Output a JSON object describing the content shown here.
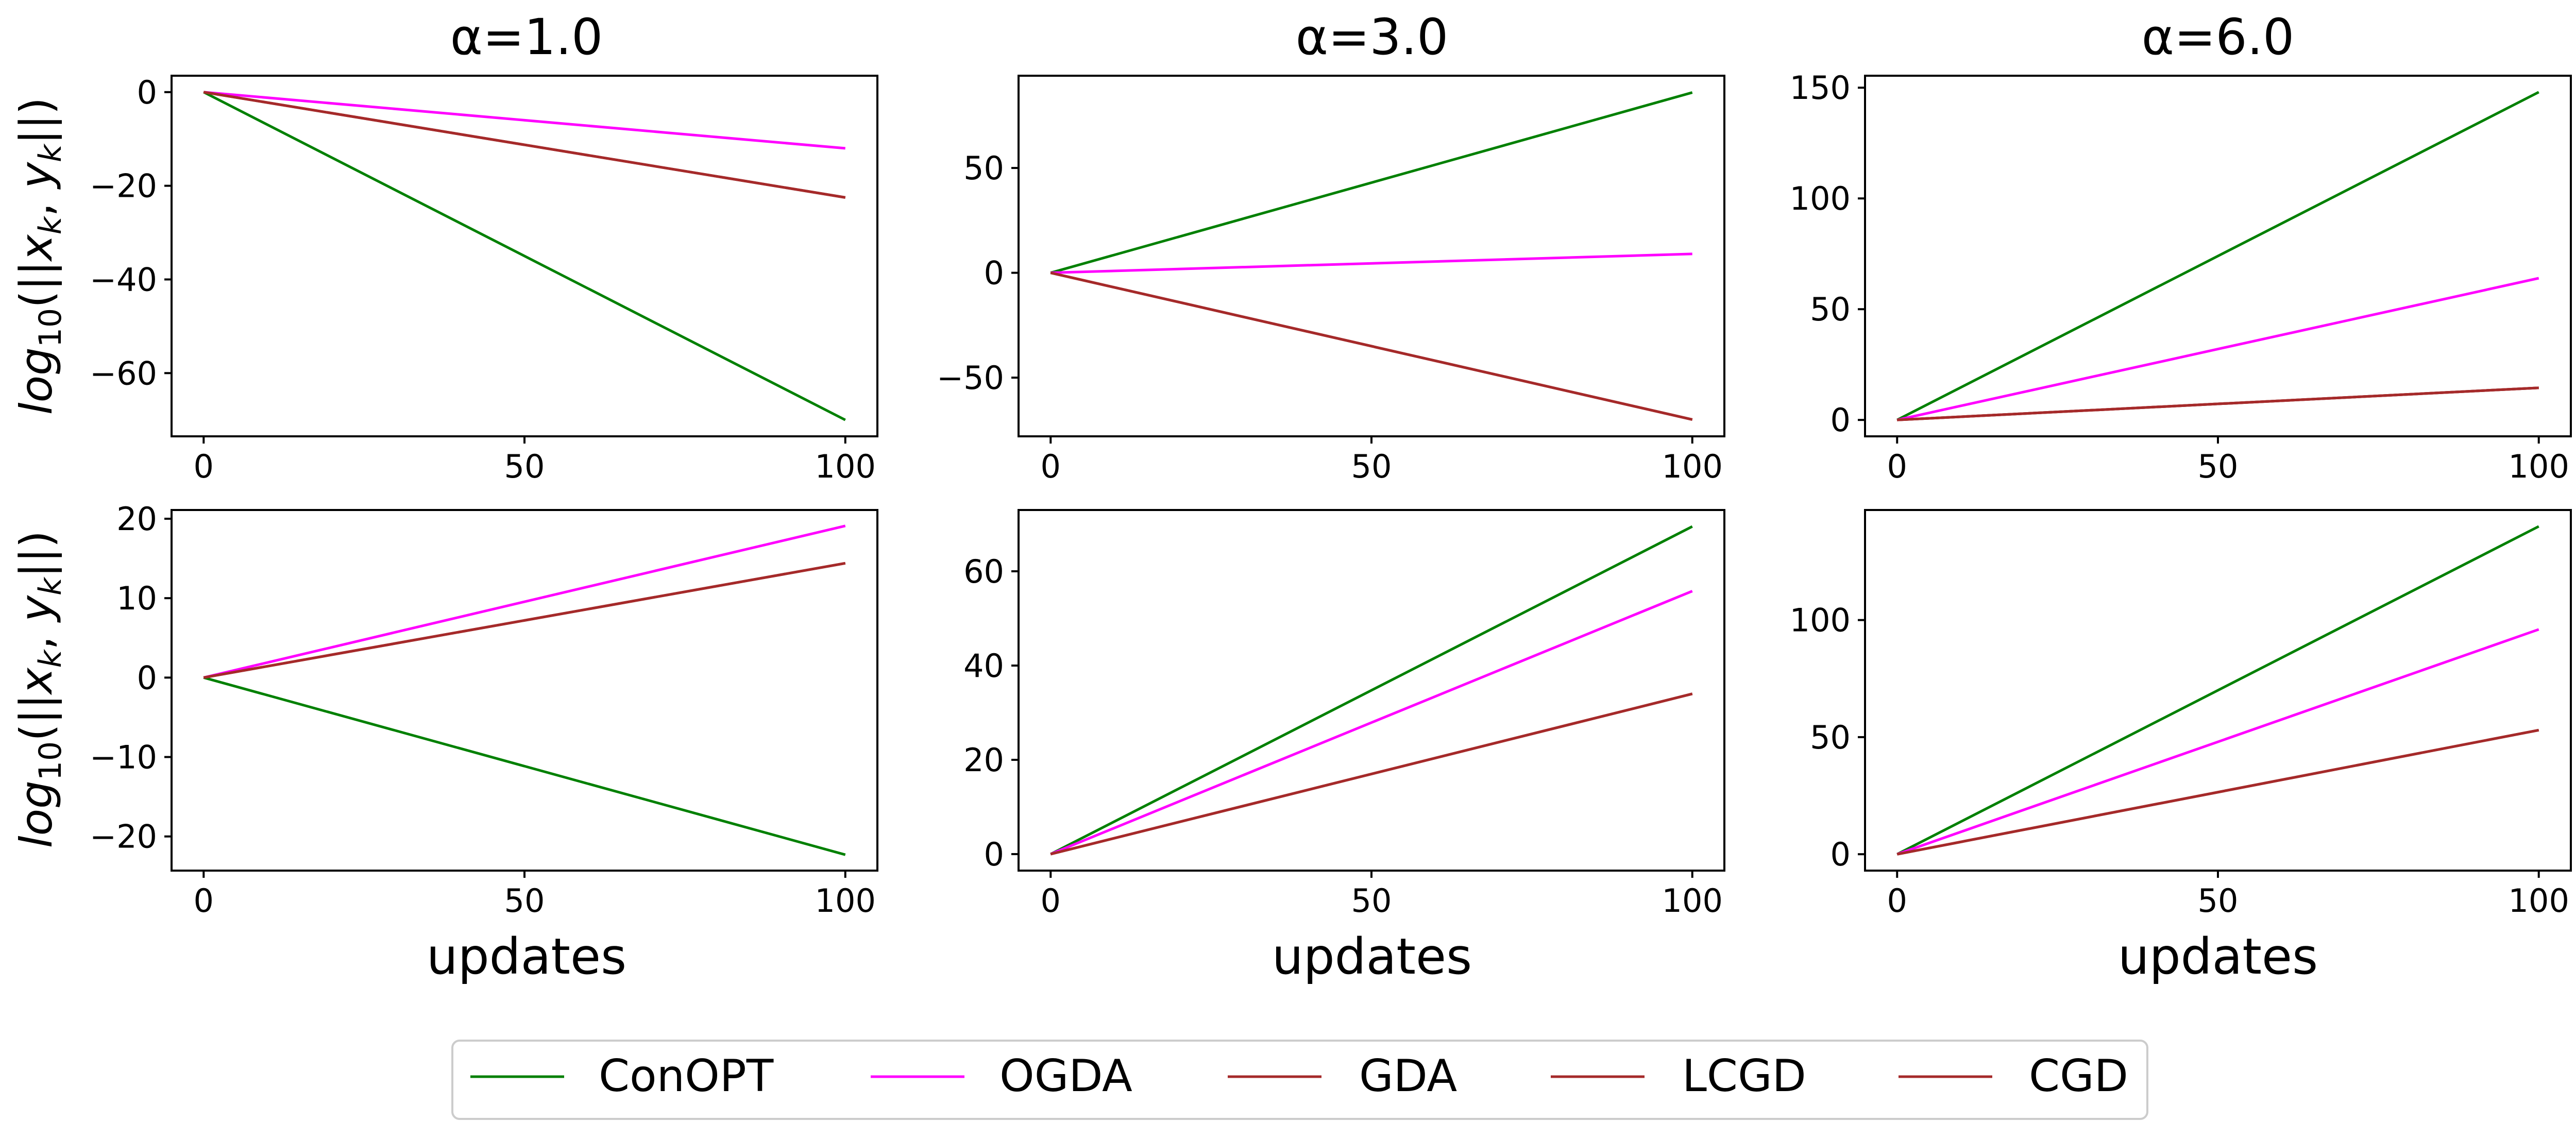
{
  "figure": {
    "column_titles": [
      "α=1.0",
      "α=3.0",
      "α=6.0"
    ],
    "xlabel": "updates",
    "ylabel": "log10(||xk, yk||)",
    "ylabel_parts": {
      "main": "log",
      "sub": "10",
      "paren_open": "(||",
      "x": "x",
      "k1": "k",
      "comma": ", ",
      "y": "y",
      "k2": "k",
      "paren_close": "||)"
    }
  },
  "legend": {
    "placement": "bottom-center",
    "entries": [
      {
        "name": "ConOPT",
        "color": "#008000"
      },
      {
        "name": "OGDA",
        "color": "#ff00ff"
      },
      {
        "name": "GDA",
        "color": "#a52a2a"
      },
      {
        "name": "LCGD",
        "color": "#a52a2a"
      },
      {
        "name": "CGD",
        "color": "#a52a2a"
      }
    ]
  },
  "chart_data": [
    {
      "type": "line",
      "row": 0,
      "col": 0,
      "title": "α=1.0",
      "xlabel": "",
      "ylabel": "log10(||xk, yk||)",
      "x": [
        0,
        100
      ],
      "xlim": [
        -5,
        105
      ],
      "ylim": [
        -73.5,
        3.5
      ],
      "xticks": [
        0,
        50,
        100
      ],
      "yticks": [
        0,
        -20,
        -40,
        -60
      ],
      "series": [
        {
          "name": "ConOPT",
          "color": "#008000",
          "values": [
            0,
            -70
          ]
        },
        {
          "name": "OGDA",
          "color": "#ff00ff",
          "values": [
            0,
            -12
          ]
        },
        {
          "name": "GDA",
          "color": "#a52a2a",
          "values": [
            0,
            -22.5
          ]
        },
        {
          "name": "LCGD",
          "color": "#a52a2a",
          "values": [
            0,
            -22.5
          ]
        },
        {
          "name": "CGD",
          "color": "#a52a2a",
          "values": [
            0,
            -22.5
          ]
        }
      ]
    },
    {
      "type": "line",
      "row": 0,
      "col": 1,
      "title": "α=3.0",
      "xlabel": "",
      "ylabel": "",
      "x": [
        0,
        100
      ],
      "xlim": [
        -5,
        105
      ],
      "ylim": [
        -78,
        94
      ],
      "xticks": [
        0,
        50,
        100
      ],
      "yticks": [
        50,
        0,
        -50
      ],
      "series": [
        {
          "name": "ConOPT",
          "color": "#008000",
          "values": [
            0,
            86
          ]
        },
        {
          "name": "OGDA",
          "color": "#ff00ff",
          "values": [
            0,
            9
          ]
        },
        {
          "name": "GDA",
          "color": "#a52a2a",
          "values": [
            0,
            -70
          ]
        },
        {
          "name": "LCGD",
          "color": "#a52a2a",
          "values": [
            0,
            -70
          ]
        },
        {
          "name": "CGD",
          "color": "#a52a2a",
          "values": [
            0,
            -70
          ]
        }
      ]
    },
    {
      "type": "line",
      "row": 0,
      "col": 2,
      "title": "α=6.0",
      "xlabel": "",
      "ylabel": "",
      "x": [
        0,
        100
      ],
      "xlim": [
        -5,
        105
      ],
      "ylim": [
        -7.4,
        155.4
      ],
      "xticks": [
        0,
        50,
        100
      ],
      "yticks": [
        150,
        100,
        50,
        0
      ],
      "series": [
        {
          "name": "ConOPT",
          "color": "#008000",
          "values": [
            0,
            148
          ]
        },
        {
          "name": "OGDA",
          "color": "#ff00ff",
          "values": [
            0,
            64
          ]
        },
        {
          "name": "GDA",
          "color": "#a52a2a",
          "values": [
            0,
            14.5
          ]
        },
        {
          "name": "LCGD",
          "color": "#a52a2a",
          "values": [
            0,
            14.5
          ]
        },
        {
          "name": "CGD",
          "color": "#a52a2a",
          "values": [
            0,
            14.5
          ]
        }
      ]
    },
    {
      "type": "line",
      "row": 1,
      "col": 0,
      "title": "",
      "xlabel": "updates",
      "ylabel": "log10(||xk, yk||)",
      "x": [
        0,
        100
      ],
      "xlim": [
        -5,
        105
      ],
      "ylim": [
        -24.3,
        21.1
      ],
      "xticks": [
        0,
        50,
        100
      ],
      "yticks": [
        20,
        10,
        0,
        -10,
        -20
      ],
      "series": [
        {
          "name": "ConOPT",
          "color": "#008000",
          "values": [
            0,
            -22.3
          ]
        },
        {
          "name": "OGDA",
          "color": "#ff00ff",
          "values": [
            0,
            19.1
          ]
        },
        {
          "name": "GDA",
          "color": "#a52a2a",
          "values": [
            0,
            14.4
          ]
        },
        {
          "name": "LCGD",
          "color": "#a52a2a",
          "values": [
            0,
            14.4
          ]
        },
        {
          "name": "CGD",
          "color": "#a52a2a",
          "values": [
            0,
            14.4
          ]
        }
      ]
    },
    {
      "type": "line",
      "row": 1,
      "col": 1,
      "title": "",
      "xlabel": "updates",
      "ylabel": "",
      "x": [
        0,
        100
      ],
      "xlim": [
        -5,
        105
      ],
      "ylim": [
        -3.5,
        73
      ],
      "xticks": [
        0,
        50,
        100
      ],
      "yticks": [
        60,
        40,
        20,
        0
      ],
      "series": [
        {
          "name": "ConOPT",
          "color": "#008000",
          "values": [
            0,
            69.5
          ]
        },
        {
          "name": "OGDA",
          "color": "#ff00ff",
          "values": [
            0,
            55.8
          ]
        },
        {
          "name": "GDA",
          "color": "#a52a2a",
          "values": [
            0,
            34
          ]
        },
        {
          "name": "LCGD",
          "color": "#a52a2a",
          "values": [
            0,
            34
          ]
        },
        {
          "name": "CGD",
          "color": "#a52a2a",
          "values": [
            0,
            34
          ]
        }
      ]
    },
    {
      "type": "line",
      "row": 1,
      "col": 2,
      "title": "",
      "xlabel": "updates",
      "ylabel": "",
      "x": [
        0,
        100
      ],
      "xlim": [
        -5,
        105
      ],
      "ylim": [
        -7,
        147
      ],
      "xticks": [
        0,
        50,
        100
      ],
      "yticks": [
        100,
        50,
        0
      ],
      "series": [
        {
          "name": "ConOPT",
          "color": "#008000",
          "values": [
            0,
            140
          ]
        },
        {
          "name": "OGDA",
          "color": "#ff00ff",
          "values": [
            0,
            96
          ]
        },
        {
          "name": "GDA",
          "color": "#a52a2a",
          "values": [
            0,
            53
          ]
        },
        {
          "name": "LCGD",
          "color": "#a52a2a",
          "values": [
            0,
            53
          ]
        },
        {
          "name": "CGD",
          "color": "#a52a2a",
          "values": [
            0,
            53
          ]
        }
      ]
    }
  ]
}
